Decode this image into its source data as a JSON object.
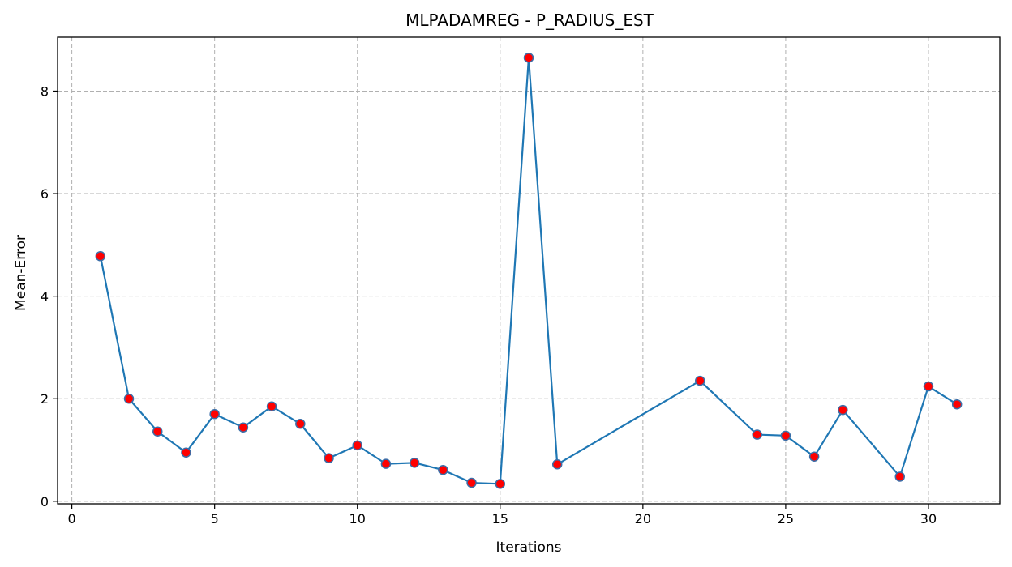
{
  "chart_data": {
    "type": "line",
    "title": "MLPADAMREG - P_RADIUS_EST",
    "xlabel": "Iterations",
    "ylabel": "Mean-Error",
    "xlim": [
      -0.5,
      32.5
    ],
    "ylim": [
      -0.05,
      9.05
    ],
    "xticks": [
      0,
      5,
      10,
      15,
      20,
      25,
      30
    ],
    "yticks": [
      0,
      2,
      4,
      6,
      8
    ],
    "grid": true,
    "line_color": "#1f77b4",
    "marker_face_color": "#ff0000",
    "marker_edge_color": "#3b6ea8",
    "series": [
      {
        "x": [
          1,
          2,
          3,
          4,
          5,
          6,
          7,
          8,
          9,
          10,
          11,
          12,
          13,
          14,
          15,
          16,
          17,
          22,
          24,
          25,
          26,
          27,
          29,
          30,
          31
        ],
        "y": [
          4.78,
          2.0,
          1.36,
          0.95,
          1.7,
          1.44,
          1.85,
          1.51,
          0.84,
          1.09,
          0.73,
          0.75,
          0.61,
          0.36,
          0.34,
          8.65,
          0.72,
          2.35,
          1.3,
          1.28,
          0.87,
          1.78,
          0.48,
          2.24,
          1.89
        ]
      }
    ]
  }
}
